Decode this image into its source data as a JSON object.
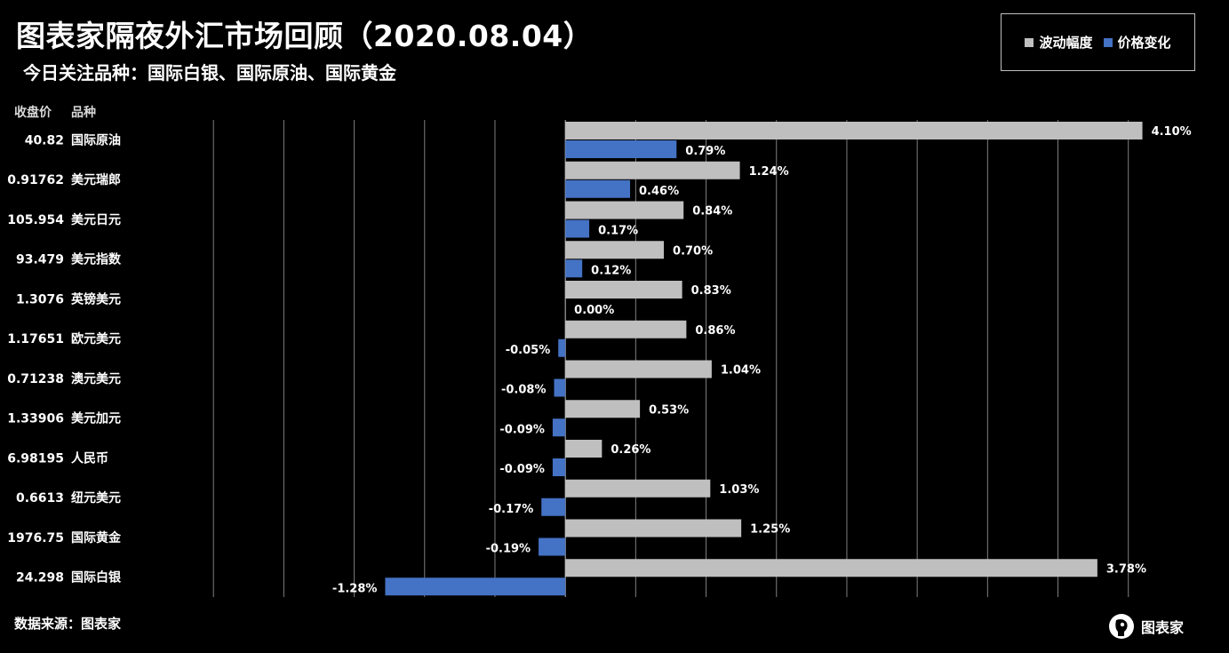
{
  "header": {
    "title": "图表家隔夜外汇市场回顾（2020.08.04）",
    "subtitle": "今日关注品种：国际白银、国际原油、国际黄金"
  },
  "legend": {
    "series1_label": "波动幅度",
    "series2_label": "价格变化"
  },
  "columns": {
    "price_label": "收盘价",
    "name_label": "品种"
  },
  "footer": {
    "source": "数据来源：图表家",
    "logo_text": "图表家"
  },
  "colors": {
    "background": "#000000",
    "series1": "#bfbfbf",
    "series2": "#4472c4",
    "grid": "#7f7f7f",
    "text": "#ffffff"
  },
  "chart_data": {
    "type": "bar",
    "orientation": "horizontal",
    "xlim": [
      -0.03,
      0.0445
    ],
    "grid": true,
    "legend_position": "top-right",
    "rows": [
      {
        "price": "40.82",
        "name": "国际原油",
        "volatility": 0.041,
        "volatility_label": "4.10%",
        "change": 0.0079,
        "change_label": "0.79%"
      },
      {
        "price": "0.91762",
        "name": "美元瑞郎",
        "volatility": 0.0124,
        "volatility_label": "1.24%",
        "change": 0.0046,
        "change_label": "0.46%"
      },
      {
        "price": "105.954",
        "name": "美元日元",
        "volatility": 0.0084,
        "volatility_label": "0.84%",
        "change": 0.0017,
        "change_label": "0.17%"
      },
      {
        "price": "93.479",
        "name": "美元指数",
        "volatility": 0.007,
        "volatility_label": "0.70%",
        "change": 0.0012,
        "change_label": "0.12%"
      },
      {
        "price": "1.3076",
        "name": "英镑美元",
        "volatility": 0.0083,
        "volatility_label": "0.83%",
        "change": 0.0,
        "change_label": "0.00%"
      },
      {
        "price": "1.17651",
        "name": "欧元美元",
        "volatility": 0.0086,
        "volatility_label": "0.86%",
        "change": -0.0005,
        "change_label": "-0.05%"
      },
      {
        "price": "0.71238",
        "name": "澳元美元",
        "volatility": 0.0104,
        "volatility_label": "1.04%",
        "change": -0.0008,
        "change_label": "-0.08%"
      },
      {
        "price": "1.33906",
        "name": "美元加元",
        "volatility": 0.0053,
        "volatility_label": "0.53%",
        "change": -0.0009,
        "change_label": "-0.09%"
      },
      {
        "price": "6.98195",
        "name": "人民币",
        "volatility": 0.0026,
        "volatility_label": "0.26%",
        "change": -0.0009,
        "change_label": "-0.09%"
      },
      {
        "price": "0.6613",
        "name": "纽元美元",
        "volatility": 0.0103,
        "volatility_label": "1.03%",
        "change": -0.0017,
        "change_label": "-0.17%"
      },
      {
        "price": "1976.75",
        "name": "国际黄金",
        "volatility": 0.0125,
        "volatility_label": "1.25%",
        "change": -0.0019,
        "change_label": "-0.19%"
      },
      {
        "price": "24.298",
        "name": "国际白银",
        "volatility": 0.0378,
        "volatility_label": "3.78%",
        "change": -0.0128,
        "change_label": "-1.28%"
      }
    ]
  }
}
